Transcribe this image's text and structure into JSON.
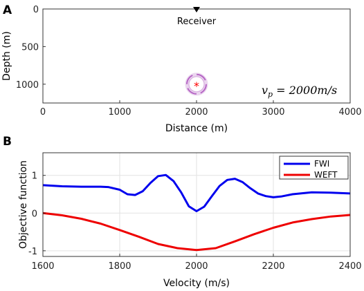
{
  "panel_a": {
    "letter": "A",
    "receiver_label": "Receiver",
    "formula_prefix": "v",
    "formula_sub": "p",
    "formula_rest": " = 2000m/s",
    "colors": {
      "receiver": "#000000",
      "source": "#ff0000",
      "ring": "#b05ac0"
    }
  },
  "panel_b": {
    "letter": "B"
  },
  "chart_data": [
    {
      "type": "scatter",
      "panel": "A",
      "xlabel": "Distance (m)",
      "ylabel": "Depth (m)",
      "xlim": [
        0,
        4000
      ],
      "ylim": [
        1250,
        0
      ],
      "xticks": [
        0,
        1000,
        2000,
        3000,
        4000
      ],
      "yticks": [
        0,
        500,
        1000
      ],
      "grid": false,
      "receiver": {
        "x": 2000,
        "y": 0,
        "label": "Receiver"
      },
      "source": {
        "x": 2000,
        "y": 1000
      },
      "annotation": "v_p = 2000m/s"
    },
    {
      "type": "line",
      "panel": "B",
      "xlabel": "Velocity (m/s)",
      "ylabel": "Objective function",
      "xlim": [
        1600,
        2400
      ],
      "ylim": [
        -1.15,
        1.6
      ],
      "xticks": [
        1600,
        1800,
        2000,
        2200,
        2400
      ],
      "yticks": [
        -1,
        0,
        1
      ],
      "grid": true,
      "legend_position": "top-right",
      "series": [
        {
          "name": "FWI",
          "color": "#0000ee",
          "x": [
            1600,
            1650,
            1700,
            1750,
            1770,
            1800,
            1820,
            1840,
            1860,
            1880,
            1900,
            1920,
            1940,
            1960,
            1980,
            2000,
            2020,
            2040,
            2060,
            2080,
            2100,
            2120,
            2140,
            2160,
            2180,
            2200,
            2220,
            2250,
            2300,
            2350,
            2400
          ],
          "y": [
            0.74,
            0.71,
            0.7,
            0.7,
            0.69,
            0.62,
            0.5,
            0.48,
            0.58,
            0.8,
            0.98,
            1.01,
            0.85,
            0.55,
            0.18,
            0.05,
            0.17,
            0.45,
            0.72,
            0.88,
            0.91,
            0.82,
            0.66,
            0.52,
            0.45,
            0.42,
            0.44,
            0.5,
            0.55,
            0.54,
            0.52
          ]
        },
        {
          "name": "WEFT",
          "color": "#ee0000",
          "x": [
            1600,
            1650,
            1700,
            1750,
            1800,
            1850,
            1900,
            1950,
            2000,
            2050,
            2100,
            2150,
            2200,
            2250,
            2300,
            2350,
            2400
          ],
          "y": [
            0.0,
            -0.06,
            -0.15,
            -0.28,
            -0.45,
            -0.63,
            -0.82,
            -0.93,
            -0.98,
            -0.93,
            -0.75,
            -0.56,
            -0.39,
            -0.25,
            -0.16,
            -0.09,
            -0.05
          ]
        }
      ]
    }
  ]
}
